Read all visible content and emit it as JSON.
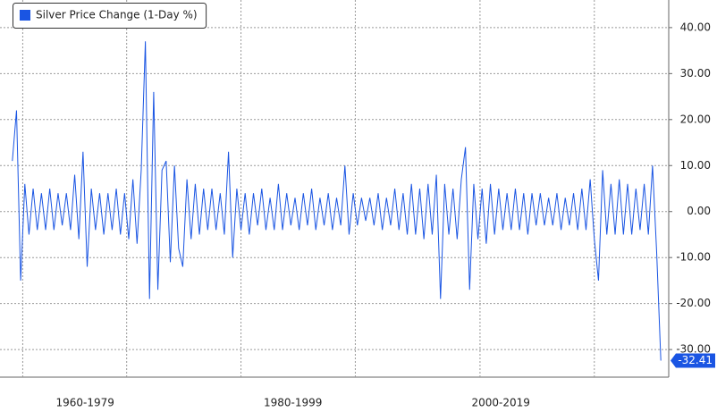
{
  "chart_data": {
    "type": "line",
    "legend": "top-left",
    "grid": true,
    "series": [
      {
        "name": "Silver Price Change (1-Day %)",
        "color": "#1a55e3",
        "x": [
          1963,
          1963.4,
          1963.8,
          1964.2,
          1964.6,
          1965,
          1965.4,
          1965.8,
          1966.2,
          1966.6,
          1967,
          1967.4,
          1967.8,
          1968.2,
          1968.6,
          1969,
          1969.4,
          1969.8,
          1970.2,
          1970.6,
          1971,
          1971.4,
          1971.8,
          1972.2,
          1972.6,
          1973,
          1973.4,
          1973.8,
          1974.2,
          1974.6,
          1975,
          1975.4,
          1975.8,
          1976.2,
          1976.6,
          1977,
          1977.4,
          1977.8,
          1978.2,
          1978.6,
          1979,
          1979.4,
          1979.8,
          1980.2,
          1980.6,
          1981,
          1981.4,
          1981.8,
          1982.2,
          1982.6,
          1983,
          1983.4,
          1983.8,
          1984.2,
          1984.6,
          1985,
          1985.4,
          1985.8,
          1986.2,
          1986.6,
          1987,
          1987.4,
          1987.8,
          1988.2,
          1988.6,
          1989,
          1989.4,
          1989.8,
          1990.2,
          1990.6,
          1991,
          1991.4,
          1991.8,
          1992.2,
          1992.6,
          1993,
          1993.4,
          1993.8,
          1994.2,
          1994.6,
          1995,
          1995.4,
          1995.8,
          1996.2,
          1996.6,
          1997,
          1997.4,
          1997.8,
          1998.2,
          1998.6,
          1999,
          1999.4,
          1999.8,
          2000.2,
          2000.6,
          2001,
          2001.4,
          2001.8,
          2002.2,
          2002.6,
          2003,
          2003.4,
          2003.8,
          2004.2,
          2004.6,
          2005,
          2005.4,
          2005.8,
          2006.2,
          2006.6,
          2007,
          2007.4,
          2007.8,
          2008.2,
          2008.6,
          2009,
          2009.4,
          2009.8,
          2010.2,
          2010.6,
          2011,
          2011.4,
          2011.8,
          2012.2,
          2012.6,
          2013,
          2013.4,
          2013.8,
          2014.2,
          2014.6,
          2015,
          2015.4,
          2015.8,
          2016.2,
          2016.6,
          2017,
          2017.4,
          2017.8,
          2018.2,
          2018.6,
          2019,
          2019.4,
          2019.8,
          2020.2,
          2020.6,
          2021,
          2021.4,
          2021.8,
          2022.2,
          2022.6,
          2023,
          2023.4,
          2023.8,
          2024.2,
          2024.6,
          2025,
          2025.4
        ],
        "values": [
          11,
          22,
          -15,
          6,
          -5,
          5,
          -4,
          4,
          -4,
          5,
          -4,
          4,
          -3,
          4,
          -4,
          8,
          -6,
          13,
          -12,
          5,
          -4,
          4,
          -5,
          4,
          -4,
          5,
          -5,
          4,
          -6,
          7,
          -7,
          9,
          37,
          -19,
          26,
          -17,
          9,
          11,
          -11,
          10,
          -8,
          -12,
          7,
          -6,
          6,
          -5,
          5,
          -4,
          5,
          -4,
          4,
          -5,
          13,
          -10,
          5,
          -4,
          4,
          -5,
          4,
          -3,
          5,
          -4,
          3,
          -4,
          6,
          -4,
          4,
          -3,
          3,
          -4,
          4,
          -3,
          5,
          -4,
          3,
          -3,
          4,
          -4,
          3,
          -3,
          10,
          -5,
          4,
          -3,
          3,
          -2,
          3,
          -3,
          4,
          -4,
          3,
          -3,
          5,
          -4,
          4,
          -5,
          6,
          -5,
          5,
          -6,
          6,
          -5,
          8,
          -19,
          6,
          -5,
          5,
          -6,
          7,
          14,
          -17,
          6,
          -6,
          5,
          -7,
          6,
          -5,
          5,
          -4,
          4,
          -4,
          5,
          -4,
          4,
          -5,
          4,
          -3,
          4,
          -3,
          3,
          -3,
          4,
          -4,
          3,
          -3,
          4,
          -4,
          5,
          -4,
          7,
          -6,
          -15,
          9,
          -5,
          6,
          -5,
          7,
          -5,
          6,
          -5,
          5,
          -4,
          6,
          -5,
          10,
          -9,
          -32.41
        ]
      }
    ],
    "xlim": [
      1962.5,
      2025.9
    ],
    "xticks": [
      {
        "value": 1970,
        "label": "1960-1979"
      },
      {
        "value": 1990,
        "label": "1980-1999"
      },
      {
        "value": 2010,
        "label": "2000-2019"
      }
    ],
    "xgrid": [
      1964,
      1974,
      1985,
      1996,
      2008,
      2019
    ],
    "ylim": [
      -36,
      46
    ],
    "yticks": [
      {
        "value": 40,
        "label": "40.00"
      },
      {
        "value": 30,
        "label": "30.00"
      },
      {
        "value": 20,
        "label": "20.00"
      },
      {
        "value": 10,
        "label": "10.00"
      },
      {
        "value": 0,
        "label": "0.00"
      },
      {
        "value": -10,
        "label": "-10.00"
      },
      {
        "value": -20,
        "label": "-20.00"
      },
      {
        "value": -30,
        "label": "-30.00"
      }
    ]
  }
}
